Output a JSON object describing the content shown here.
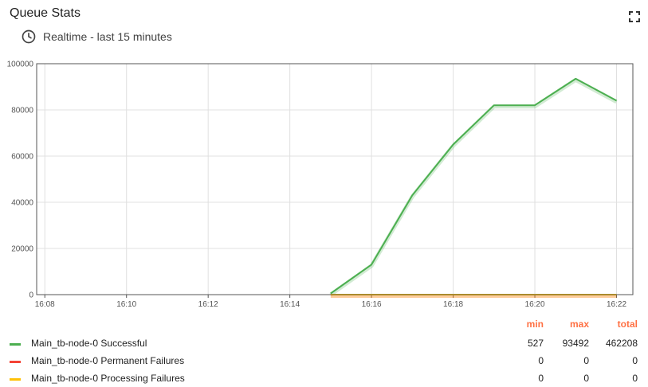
{
  "header": {
    "title": "Queue Stats",
    "timewindow": "Realtime - last 15 minutes"
  },
  "legend": {
    "col_min": "min",
    "col_max": "max",
    "col_total": "total",
    "rows": [
      {
        "name": "Main_tb-node-0 Successful",
        "color": "#4caf50",
        "min": "527",
        "max": "93492",
        "total": "462208"
      },
      {
        "name": "Main_tb-node-0 Permanent Failures",
        "color": "#f44336",
        "min": "0",
        "max": "0",
        "total": "0"
      },
      {
        "name": "Main_tb-node-0 Processing Failures",
        "color": "#ffc107",
        "min": "0",
        "max": "0",
        "total": "0"
      }
    ]
  },
  "chart_data": {
    "type": "line",
    "x_ticks": [
      "16:08",
      "16:10",
      "16:12",
      "16:14",
      "16:16",
      "16:18",
      "16:20",
      "16:22"
    ],
    "x_range_minutes": [
      7.8,
      22.4
    ],
    "y_ticks": [
      "0",
      "20000",
      "40000",
      "60000",
      "80000",
      "100000"
    ],
    "ylim": [
      0,
      100000
    ],
    "grid": true,
    "series": [
      {
        "name": "Main_tb-node-0 Successful",
        "color": "#4caf50",
        "x": [
          "16:15",
          "16:16",
          "16:17",
          "16:18",
          "16:19",
          "16:20",
          "16:21",
          "16:22"
        ],
        "values": [
          527,
          13000,
          43000,
          65000,
          82000,
          82000,
          93492,
          84000
        ]
      },
      {
        "name": "Main_tb-node-0 Permanent Failures",
        "color": "#f44336",
        "x": [
          "16:15",
          "16:16",
          "16:17",
          "16:18",
          "16:19",
          "16:20",
          "16:21",
          "16:22"
        ],
        "values": [
          0,
          0,
          0,
          0,
          0,
          0,
          0,
          0
        ]
      },
      {
        "name": "Main_tb-node-0 Processing Failures",
        "color": "#ffc107",
        "x": [
          "16:15",
          "16:16",
          "16:17",
          "16:18",
          "16:19",
          "16:20",
          "16:21",
          "16:22"
        ],
        "values": [
          0,
          0,
          0,
          0,
          0,
          0,
          0,
          0
        ]
      }
    ]
  }
}
